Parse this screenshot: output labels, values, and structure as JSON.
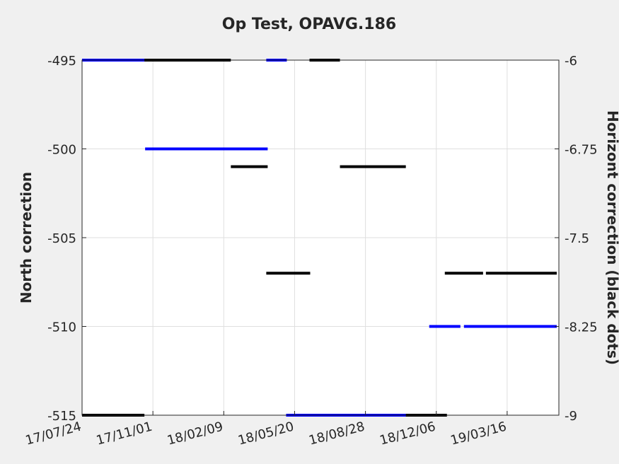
{
  "chart_data": {
    "type": "line",
    "title": "Op Test, OPAVG.186",
    "ylabel_left": "North correction",
    "ylabel_right": "Horizont correction (black dots)",
    "x_ticks": [
      "17/07/24",
      "17/11/01",
      "18/02/09",
      "18/05/20",
      "18/08/28",
      "18/12/06",
      "19/03/16"
    ],
    "x_range": [
      "2017-07-24",
      "2019-05-28"
    ],
    "left_axis": {
      "ticks": [
        "-495",
        "-500",
        "-505",
        "-510",
        "-515"
      ],
      "ylim": [
        -515,
        -495
      ]
    },
    "right_axis": {
      "ticks": [
        "-6",
        "-6.75",
        "-7.5",
        "-8.25",
        "-9"
      ],
      "ylim": [
        -9,
        -6
      ]
    },
    "grid": true,
    "series": [
      {
        "color": "#0000ff",
        "axis": "left",
        "segments": [
          {
            "x": [
              "2017-07-24",
              "2017-10-21"
            ],
            "y": -495
          },
          {
            "x": [
              "2017-10-21",
              "2018-04-12"
            ],
            "y": -500
          },
          {
            "x": [
              "2018-04-10",
              "2018-05-09"
            ],
            "y": -495
          },
          {
            "x": [
              "2018-05-08",
              "2018-11-26"
            ],
            "y": -515
          },
          {
            "x": [
              "2018-11-26",
              "2019-01-09"
            ],
            "y": -510
          },
          {
            "x": [
              "2019-01-14",
              "2019-05-25"
            ],
            "y": -510
          }
        ]
      },
      {
        "color": "#000000",
        "axis": "right",
        "segments": [
          {
            "x": [
              "2017-07-24",
              "2017-10-20"
            ],
            "y": -9
          },
          {
            "x": [
              "2017-10-20",
              "2018-02-19"
            ],
            "y": -6
          },
          {
            "x": [
              "2018-02-19",
              "2018-04-12"
            ],
            "y": -6.9
          },
          {
            "x": [
              "2018-04-10",
              "2018-06-11"
            ],
            "y": -7.8
          },
          {
            "x": [
              "2018-06-10",
              "2018-07-23"
            ],
            "y": -6
          },
          {
            "x": [
              "2018-07-23",
              "2018-10-24"
            ],
            "y": -6.9
          },
          {
            "x": [
              "2018-10-24",
              "2018-12-21"
            ],
            "y": -9
          },
          {
            "x": [
              "2018-12-18",
              "2019-02-10"
            ],
            "y": -7.8
          },
          {
            "x": [
              "2019-02-14",
              "2019-05-25"
            ],
            "y": -7.8
          }
        ]
      }
    ]
  }
}
